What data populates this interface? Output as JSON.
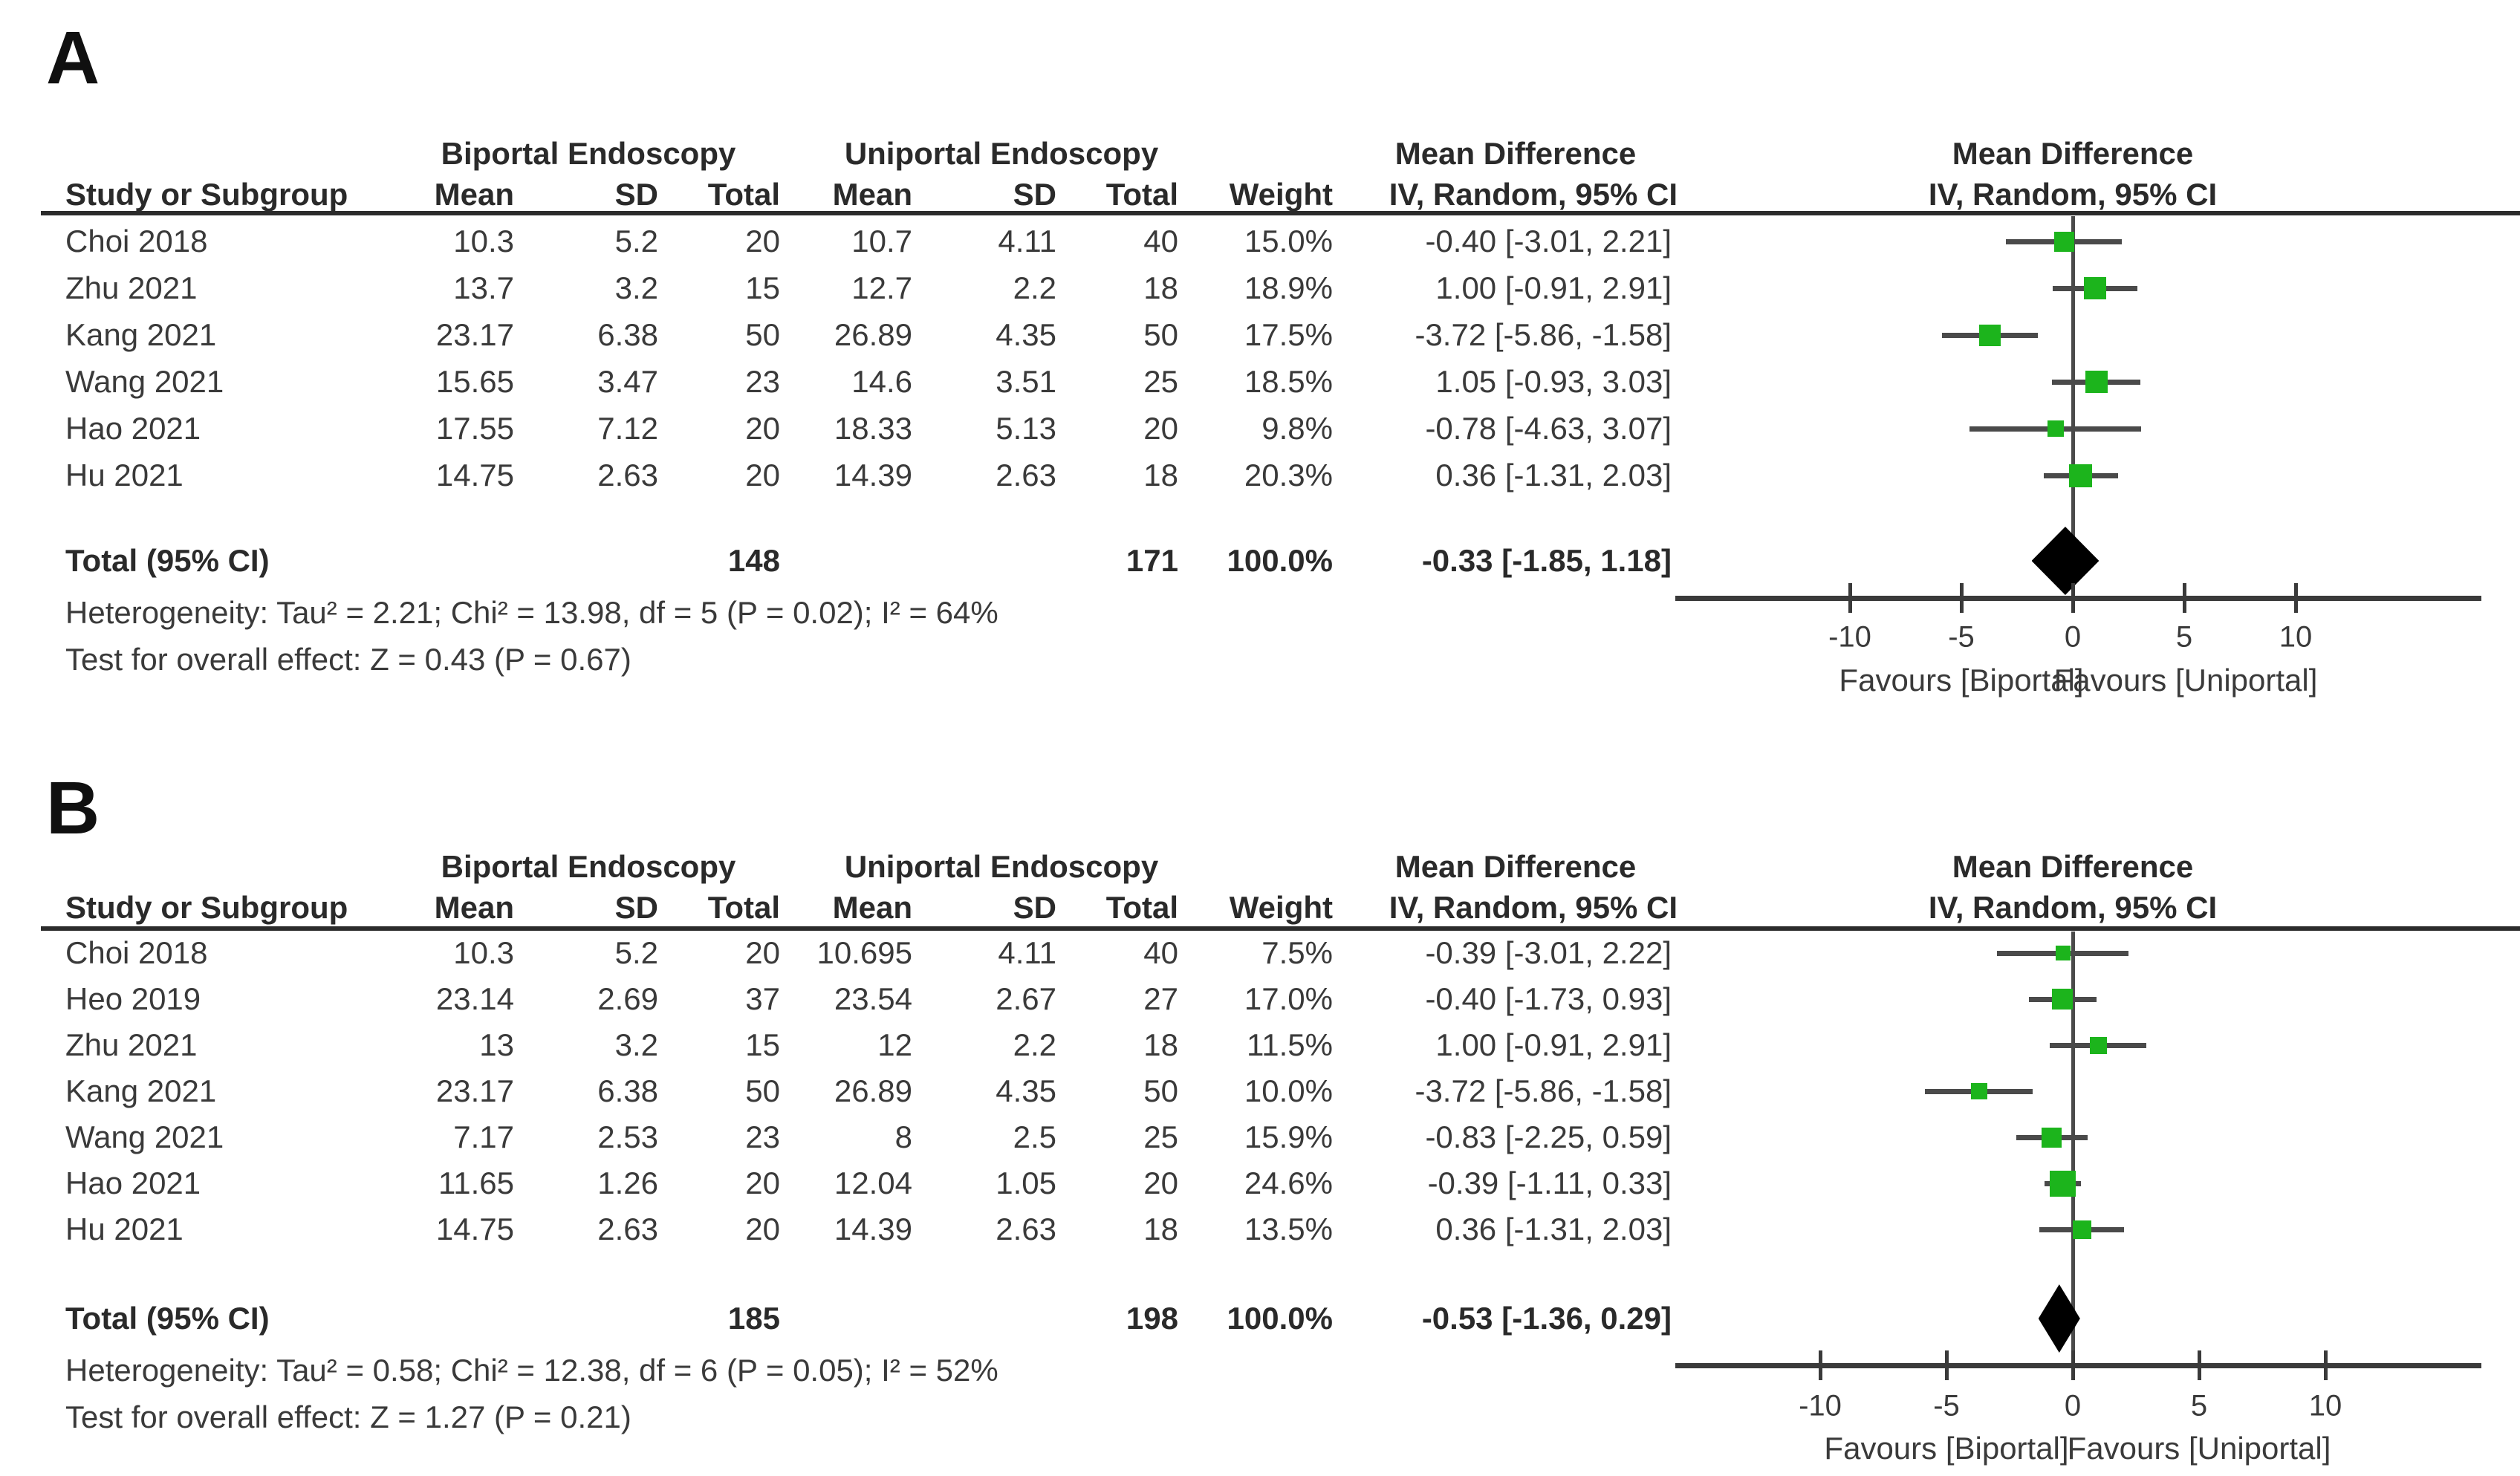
{
  "chart_data": [
    {
      "type": "forest",
      "panel_label": "A",
      "group_headers": {
        "experimental": "Biportal Endoscopy",
        "control": "Uniportal Endoscopy",
        "md_text": "Mean Difference",
        "md_plot": "Mean Difference"
      },
      "column_headers": {
        "study": "Study or Subgroup",
        "mean1": "Mean",
        "sd1": "SD",
        "total1": "Total",
        "mean2": "Mean",
        "sd2": "SD",
        "total2": "Total",
        "weight": "Weight",
        "ci": "IV, Random, 95% CI",
        "ci_plot": "IV, Random, 95% CI"
      },
      "studies": [
        {
          "study": "Choi 2018",
          "mean1": "10.3",
          "sd1": "5.2",
          "total1": "20",
          "mean2": "10.7",
          "sd2": "4.11",
          "total2": "40",
          "weight": "15.0%",
          "weight_pct": 15.0,
          "ci_text": "-0.40 [-3.01, 2.21]",
          "md": -0.4,
          "lo": -3.01,
          "hi": 2.21
        },
        {
          "study": "Zhu 2021",
          "mean1": "13.7",
          "sd1": "3.2",
          "total1": "15",
          "mean2": "12.7",
          "sd2": "2.2",
          "total2": "18",
          "weight": "18.9%",
          "weight_pct": 18.9,
          "ci_text": "1.00 [-0.91, 2.91]",
          "md": 1.0,
          "lo": -0.91,
          "hi": 2.91
        },
        {
          "study": "Kang 2021",
          "mean1": "23.17",
          "sd1": "6.38",
          "total1": "50",
          "mean2": "26.89",
          "sd2": "4.35",
          "total2": "50",
          "weight": "17.5%",
          "weight_pct": 17.5,
          "ci_text": "-3.72 [-5.86, -1.58]",
          "md": -3.72,
          "lo": -5.86,
          "hi": -1.58
        },
        {
          "study": "Wang 2021",
          "mean1": "15.65",
          "sd1": "3.47",
          "total1": "23",
          "mean2": "14.6",
          "sd2": "3.51",
          "total2": "25",
          "weight": "18.5%",
          "weight_pct": 18.5,
          "ci_text": "1.05 [-0.93, 3.03]",
          "md": 1.05,
          "lo": -0.93,
          "hi": 3.03
        },
        {
          "study": "Hao 2021",
          "mean1": "17.55",
          "sd1": "7.12",
          "total1": "20",
          "mean2": "18.33",
          "sd2": "5.13",
          "total2": "20",
          "weight": "9.8%",
          "weight_pct": 9.8,
          "ci_text": "-0.78 [-4.63, 3.07]",
          "md": -0.78,
          "lo": -4.63,
          "hi": 3.07
        },
        {
          "study": "Hu 2021",
          "mean1": "14.75",
          "sd1": "2.63",
          "total1": "20",
          "mean2": "14.39",
          "sd2": "2.63",
          "total2": "18",
          "weight": "20.3%",
          "weight_pct": 20.3,
          "ci_text": "0.36 [-1.31, 2.03]",
          "md": 0.36,
          "lo": -1.31,
          "hi": 2.03
        }
      ],
      "total": {
        "label": "Total (95% CI)",
        "total1": "148",
        "total2": "171",
        "weight": "100.0%",
        "ci_text": "-0.33 [-1.85, 1.18]",
        "md": -0.33,
        "lo": -1.85,
        "hi": 1.18
      },
      "heterogeneity": "Heterogeneity: Tau² = 2.21; Chi² = 13.98, df = 5 (P = 0.02); I² = 64%",
      "overall_effect": "Test for overall effect: Z = 0.43 (P = 0.67)",
      "axis": {
        "ticks": [
          -10,
          -5,
          0,
          5,
          10
        ],
        "xlim": [
          -17.5,
          18
        ],
        "favours_left": "Favours [Biportal]",
        "favours_right": "Favours [Uniportal]"
      }
    },
    {
      "type": "forest",
      "panel_label": "B",
      "group_headers": {
        "experimental": "Biportal Endoscopy",
        "control": "Uniportal Endoscopy",
        "md_text": "Mean Difference",
        "md_plot": "Mean Difference"
      },
      "column_headers": {
        "study": "Study or Subgroup",
        "mean1": "Mean",
        "sd1": "SD",
        "total1": "Total",
        "mean2": "Mean",
        "sd2": "SD",
        "total2": "Total",
        "weight": "Weight",
        "ci": "IV, Random, 95% CI",
        "ci_plot": "IV, Random, 95% CI"
      },
      "studies": [
        {
          "study": "Choi 2018",
          "mean1": "10.3",
          "sd1": "5.2",
          "total1": "20",
          "mean2": "10.695",
          "sd2": "4.11",
          "total2": "40",
          "weight": "7.5%",
          "weight_pct": 7.5,
          "ci_text": "-0.39 [-3.01, 2.22]",
          "md": -0.39,
          "lo": -3.01,
          "hi": 2.22
        },
        {
          "study": "Heo 2019",
          "mean1": "23.14",
          "sd1": "2.69",
          "total1": "37",
          "mean2": "23.54",
          "sd2": "2.67",
          "total2": "27",
          "weight": "17.0%",
          "weight_pct": 17.0,
          "ci_text": "-0.40 [-1.73, 0.93]",
          "md": -0.4,
          "lo": -1.73,
          "hi": 0.93
        },
        {
          "study": "Zhu 2021",
          "mean1": "13",
          "sd1": "3.2",
          "total1": "15",
          "mean2": "12",
          "sd2": "2.2",
          "total2": "18",
          "weight": "11.5%",
          "weight_pct": 11.5,
          "ci_text": "1.00 [-0.91, 2.91]",
          "md": 1.0,
          "lo": -0.91,
          "hi": 2.91
        },
        {
          "study": "Kang 2021",
          "mean1": "23.17",
          "sd1": "6.38",
          "total1": "50",
          "mean2": "26.89",
          "sd2": "4.35",
          "total2": "50",
          "weight": "10.0%",
          "weight_pct": 10.0,
          "ci_text": "-3.72 [-5.86, -1.58]",
          "md": -3.72,
          "lo": -5.86,
          "hi": -1.58
        },
        {
          "study": "Wang 2021",
          "mean1": "7.17",
          "sd1": "2.53",
          "total1": "23",
          "mean2": "8",
          "sd2": "2.5",
          "total2": "25",
          "weight": "15.9%",
          "weight_pct": 15.9,
          "ci_text": "-0.83 [-2.25, 0.59]",
          "md": -0.83,
          "lo": -2.25,
          "hi": 0.59
        },
        {
          "study": "Hao 2021",
          "mean1": "11.65",
          "sd1": "1.26",
          "total1": "20",
          "mean2": "12.04",
          "sd2": "1.05",
          "total2": "20",
          "weight": "24.6%",
          "weight_pct": 24.6,
          "ci_text": "-0.39 [-1.11, 0.33]",
          "md": -0.39,
          "lo": -1.11,
          "hi": 0.33
        },
        {
          "study": "Hu 2021",
          "mean1": "14.75",
          "sd1": "2.63",
          "total1": "20",
          "mean2": "14.39",
          "sd2": "2.63",
          "total2": "18",
          "weight": "13.5%",
          "weight_pct": 13.5,
          "ci_text": "0.36 [-1.31, 2.03]",
          "md": 0.36,
          "lo": -1.31,
          "hi": 2.03
        }
      ],
      "total": {
        "label": "Total (95% CI)",
        "total1": "185",
        "total2": "198",
        "weight": "100.0%",
        "ci_text": "-0.53 [-1.36, 0.29]",
        "md": -0.53,
        "lo": -1.36,
        "hi": 0.29
      },
      "heterogeneity": "Heterogeneity: Tau² = 0.58; Chi² = 12.38, df = 6 (P = 0.05); I² = 52%",
      "overall_effect": "Test for overall effect: Z = 1.27 (P = 0.21)",
      "axis": {
        "ticks": [
          -10,
          -5,
          0,
          5,
          10
        ],
        "xlim": [
          -15.7,
          16.2
        ],
        "favours_left": "Favours [Biportal]",
        "favours_right": "Favours [Uniportal]"
      }
    }
  ],
  "colors": {
    "marker_green": "#1cb41c",
    "line_gray": "#4a4a4a",
    "diamond_black": "#000000"
  }
}
